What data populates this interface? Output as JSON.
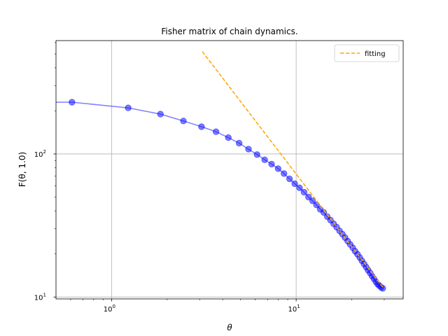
{
  "chart_data": {
    "type": "line",
    "title": "Fisher matrix of chain dynamics.",
    "xlabel": "θ",
    "ylabel": "F(θ, 1.0)",
    "xscale": "log",
    "yscale": "log",
    "xlim": [
      0.5,
      38
    ],
    "ylim": [
      9.7,
      620
    ],
    "grid": true,
    "legend_position": "top-right",
    "x_ticks": [
      {
        "value": 1,
        "base": "10",
        "exp": "0"
      },
      {
        "value": 10,
        "base": "10",
        "exp": "1"
      }
    ],
    "y_ticks": [
      {
        "value": 10,
        "base": "10",
        "exp": "1"
      },
      {
        "value": 100,
        "base": "10",
        "exp": "2"
      }
    ],
    "series": [
      {
        "name": "",
        "style": "line+markers",
        "color": "#0000ff",
        "x": [
          0.61,
          1.23,
          1.84,
          2.45,
          3.07,
          3.68,
          4.29,
          4.91,
          5.52,
          6.14,
          6.75,
          7.36,
          7.98,
          8.59,
          9.2,
          9.82,
          10.43,
          11.04,
          11.66,
          12.27,
          12.89,
          13.5,
          14.11,
          14.73,
          15.34,
          15.95,
          16.57,
          17.18,
          17.79,
          18.41,
          19.02,
          19.63,
          20.25,
          20.86,
          21.48,
          22.09,
          22.7,
          23.32,
          23.93,
          24.54,
          25.16,
          25.77,
          26.38,
          27.0,
          27.61,
          28.22,
          28.84,
          29.45
        ],
        "y": [
          230,
          210,
          190,
          170,
          155,
          143,
          130,
          119,
          108,
          99,
          91,
          85,
          79,
          73,
          67,
          62,
          58,
          54,
          50,
          47,
          44,
          41,
          39,
          36.5,
          34.5,
          32.5,
          30.8,
          29.0,
          27.5,
          26.0,
          24.6,
          23.3,
          22.1,
          20.9,
          19.9,
          18.9,
          17.9,
          17.0,
          16.2,
          15.4,
          14.7,
          14.0,
          13.4,
          12.8,
          12.3,
          12.0,
          11.7,
          11.5
        ]
      },
      {
        "name": "fitting",
        "style": "dashed",
        "color": "#ffa500",
        "x": [
          3.1,
          29.5
        ],
        "y": [
          520,
          11.7
        ]
      }
    ]
  }
}
